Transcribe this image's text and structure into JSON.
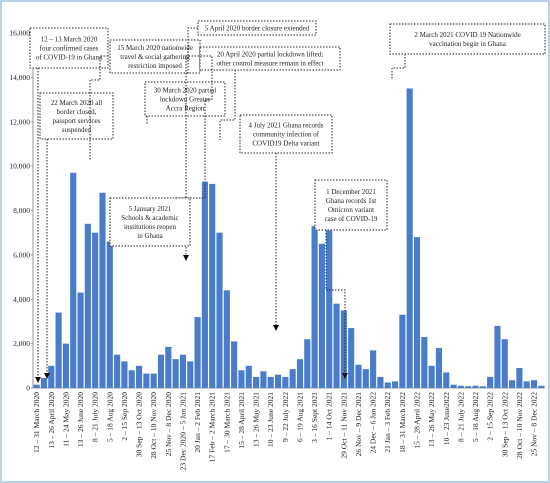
{
  "chart_data": {
    "type": "bar",
    "color": "#4a7ccc",
    "categories": [
      "12 – 31 March 2020",
      null,
      "13 – 26 April 2020",
      null,
      "11 – 24 May 2020",
      null,
      "13 – 26 June 2020",
      null,
      "8 – 21 July 2020",
      null,
      "5 – 18 Aug 2020",
      null,
      "2 – 15 Sep 2020",
      null,
      "30 Sep – 13 Oct 2020",
      null,
      "28 Oct – 10 Nov 2020",
      null,
      "25 Nov – 8 Dec 2020",
      null,
      "23 Dec 2020 – 5 Jan 2021",
      null,
      "20 Jan – 2 Feb 2021",
      null,
      "17 Feb – 2 March 2021",
      null,
      "17 – 30 March 2021",
      null,
      "15 – 28 April 2021",
      null,
      "13 – 26 May 2021",
      null,
      "10 – 23 June 2021",
      null,
      "9 – 22 July 2022",
      null,
      "6 – 19 Aug 2021",
      null,
      "3 – 16 Sept 2021",
      null,
      "1 – 14 Oct 2021",
      null,
      "29 Oct – 11 Nov 2021",
      null,
      "26 Nov – 9 Dec 2021",
      null,
      "24 Dec – 6 Jan 2022",
      null,
      "21 Jan – 3 Feb 2022",
      null,
      "18 – 31 March 2022",
      null,
      "15 – 28 April 2022",
      null,
      "13 – 26 May 2022",
      null,
      "10 – 23 June2022",
      null,
      "8 – 21 July 2022",
      null,
      "5 – 18 Aug 2022",
      null,
      "2 – 15 Sep 2022",
      null,
      "30 Sep – 13 Oct 2022",
      null,
      "28 Oct – 10 Nov 2022",
      null,
      "25 Nov – 8 Dec 2022",
      null
    ],
    "values": [
      150,
      450,
      1000,
      3400,
      2000,
      9700,
      4300,
      7400,
      7000,
      8800,
      6600,
      1500,
      1200,
      800,
      1000,
      650,
      650,
      1500,
      1850,
      1300,
      1500,
      1200,
      3200,
      9300,
      9200,
      7000,
      4400,
      2100,
      800,
      1000,
      500,
      750,
      500,
      600,
      500,
      850,
      1300,
      2200,
      7300,
      6500,
      7100,
      3800,
      3500,
      2700,
      1050,
      850,
      1700,
      500,
      250,
      300,
      3300,
      13500,
      6800,
      2300,
      1000,
      1800,
      700,
      150,
      100,
      80,
      100,
      80,
      500,
      2800,
      2200,
      350,
      900,
      300,
      350,
      100
    ],
    "ylim": [
      0,
      16000
    ],
    "yticks": [
      0,
      {
        "value": 2000,
        "label": "2,000"
      },
      {
        "value": 4000,
        "label": "4,000"
      },
      {
        "value": 6000,
        "label": "6,000"
      },
      {
        "value": 8000,
        "label": "8,000"
      },
      {
        "value": 10000,
        "label": "10,000"
      },
      {
        "value": 12000,
        "label": "12,000"
      },
      {
        "value": 14000,
        "label": "14,000"
      },
      {
        "value": 16000,
        "label": "16,000"
      }
    ],
    "grid": false,
    "annotations": [
      {
        "lines": [
          "12 – 13 March 2020",
          "four confirmed cases",
          "of COVID-19 in Ghana"
        ]
      },
      {
        "lines": [
          "22 March 2020 all",
          "border closed,",
          "passport services",
          "suspended"
        ]
      },
      {
        "lines": [
          "15 March 2020 nationwide",
          "travel & social gathering",
          "restriction imposed"
        ]
      },
      {
        "lines": [
          "5 April 2020 border closure extended"
        ]
      },
      {
        "lines": [
          "20 April 2020 partial lockdown lifted;",
          "other control measure remain in effect"
        ]
      },
      {
        "lines": [
          "30 March 2020 partial",
          "lockdown Greater",
          "Accra Region"
        ]
      },
      {
        "lines": [
          "2 March 2021 COVID 19 Nationwide",
          "vaccination begin in Ghana"
        ]
      },
      {
        "lines": [
          "5 January 2021",
          "Schools & academic",
          "institutions reopen",
          "in Ghana"
        ]
      },
      {
        "lines": [
          "4 July 2021 Ghana records",
          "community infection of",
          "COVID19 Delta variant"
        ]
      },
      {
        "lines": [
          "1 December 2021",
          "Ghana records 1st",
          "Omicron variant",
          "case of COVID-19"
        ]
      }
    ]
  }
}
